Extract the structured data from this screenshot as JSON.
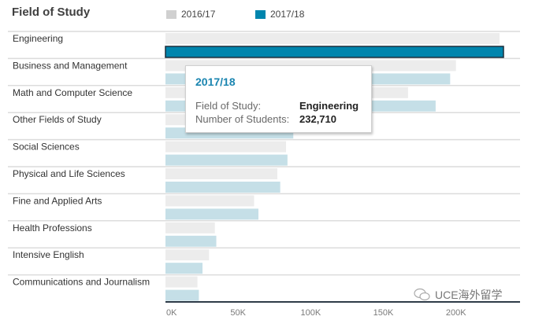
{
  "chart_data": {
    "type": "bar",
    "orientation": "horizontal",
    "title": "Field of Study",
    "xlabel": "",
    "ylabel": "",
    "xlim": [
      0,
      240000
    ],
    "ticks": [
      0,
      50000,
      100000,
      150000,
      200000
    ],
    "tick_labels": [
      "0K",
      "50K",
      "100K",
      "150K",
      "200K"
    ],
    "grid": false,
    "legend_position": "top",
    "categories": [
      "Engineering",
      "Business and Management",
      "Math and Computer Science",
      "Other Fields of Study",
      "Social Sciences",
      "Physical and Life Sciences",
      "Fine and Applied Arts",
      "Health Professions",
      "Intensive English",
      "Communications and Journalism"
    ],
    "series": [
      {
        "name": "2016/17",
        "color": "#d0d0d0",
        "bar_color": "#ececec",
        "values": [
          230000,
          200000,
          167000,
          80000,
          83000,
          77000,
          61000,
          34000,
          30000,
          22000
        ]
      },
      {
        "name": "2017/18",
        "color": "#0085ad",
        "bar_color": "#c5dfe7",
        "values": [
          232710,
          196000,
          186000,
          88000,
          84000,
          79000,
          64000,
          35000,
          25500,
          23000
        ]
      }
    ],
    "highlighted": {
      "series": 1,
      "category": 0
    }
  },
  "tooltip": {
    "title": "2017/18",
    "field_label": "Field of Study:",
    "field_value": "Engineering",
    "count_label": "Number of Students:",
    "count_value": "232,710"
  },
  "watermark": {
    "text": "UCE海外留学"
  },
  "colors": {
    "highlight_fill": "#0085ad",
    "highlight_stroke": "#1c2e3c",
    "axis_line": "#2e3b48",
    "row_divider": "#dcdcdc"
  }
}
